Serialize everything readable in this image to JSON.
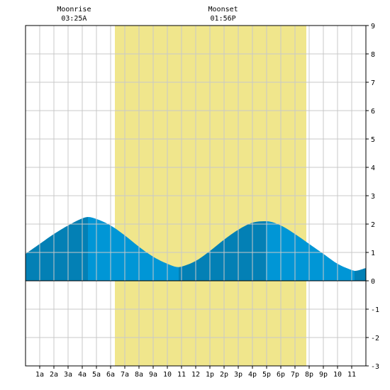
{
  "chart_data": {
    "type": "area",
    "x_unit": "hour of day",
    "ylim": [
      -3,
      9
    ],
    "xlim": [
      0,
      24
    ],
    "y_ticks": [
      "-3",
      "-2",
      "-1",
      "0",
      "1",
      "2",
      "3",
      "4",
      "5",
      "6",
      "7",
      "8",
      "9"
    ],
    "x_ticks": [
      "1a",
      "2a",
      "3a",
      "4a",
      "5a",
      "6a",
      "7a",
      "8a",
      "9a",
      "10",
      "11",
      "12",
      "1p",
      "2p",
      "3p",
      "4p",
      "5p",
      "6p",
      "7p",
      "8p",
      "9p",
      "10",
      "11"
    ],
    "grid": true,
    "daylight": {
      "start": 6.3,
      "end": 19.8,
      "color": "#f0e68c"
    },
    "moon_events": [
      {
        "label": "Moonrise",
        "time": "03:25A",
        "hour": 3.42
      },
      {
        "label": "Moonset",
        "time": "01:56P",
        "hour": 13.93
      }
    ],
    "tide_extremes": [
      {
        "hour": 4.4,
        "height": 2.25,
        "kind": "high"
      },
      {
        "hour": 10.8,
        "height": 0.48,
        "kind": "low"
      },
      {
        "hour": 16.95,
        "height": 2.1,
        "kind": "high"
      },
      {
        "hour": 23.2,
        "height": 0.35,
        "kind": "low"
      }
    ],
    "series": [
      {
        "x": [
          0,
          1,
          2,
          3,
          4,
          4.4,
          5,
          6,
          7,
          8,
          9,
          10,
          10.8,
          11,
          12,
          13,
          14,
          15,
          16,
          16.95,
          17,
          18,
          19,
          20,
          21,
          22,
          23,
          23.2,
          24
        ],
        "y": [
          0.95,
          1.3,
          1.65,
          1.95,
          2.2,
          2.25,
          2.18,
          1.95,
          1.6,
          1.2,
          0.85,
          0.6,
          0.48,
          0.5,
          0.7,
          1.05,
          1.45,
          1.8,
          2.05,
          2.1,
          2.1,
          1.95,
          1.65,
          1.3,
          0.95,
          0.6,
          0.38,
          0.35,
          0.45
        ]
      }
    ],
    "colors": {
      "tide_light": "#0096d6",
      "tide_dark": "#0380b5",
      "grid": "#c8c8c8",
      "frame": "#000000"
    }
  }
}
